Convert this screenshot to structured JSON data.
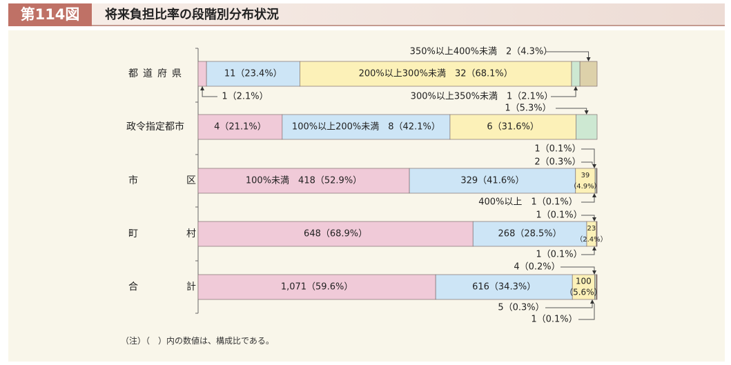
{
  "figure_number": "第114図",
  "title": "将来負担比率の段階別分布状況",
  "note": "（注）（　）内の数値は、構成比である。",
  "colors": {
    "under100": "#f0cad8",
    "100to200": "#cde5f6",
    "200to300": "#fcf1b8",
    "300to350": "#cde8d2",
    "350to400": "#ddd1aa",
    "over400": "#efe6cf"
  },
  "chart_data": {
    "type": "bar",
    "orientation": "horizontal-stacked",
    "categories": [
      "都道府県",
      "政令指定都市",
      "市区",
      "町村",
      "合計"
    ],
    "series": [
      {
        "name": "100%未満",
        "values": [
          1,
          4,
          418,
          648,
          1071
        ],
        "labels": [
          "1（2.1%）",
          "4（21.1%）",
          "100%未満　418（52.9%）",
          "648（68.9%）",
          "1,071（59.6%）"
        ]
      },
      {
        "name": "100%以上200%未満",
        "values": [
          11,
          8,
          329,
          268,
          616
        ],
        "labels": [
          "11（23.4%）",
          "100%以上200%未満　8（42.1%）",
          "329（41.6%）",
          "268（28.5%）",
          "616（34.3%）"
        ]
      },
      {
        "name": "200%以上300%未満",
        "values": [
          32,
          6,
          39,
          23,
          100
        ],
        "labels": [
          "200%以上300%未満　32（68.1%）",
          "6（31.6%）",
          "39（4.9%）",
          "23（2.4%）",
          "100（5.6%）"
        ]
      },
      {
        "name": "300%以上350%未満",
        "values": [
          1,
          1,
          2,
          1,
          5
        ],
        "labels": [
          "300%以上350%未満　1（2.1%）",
          "1（5.3%）",
          "2（0.3%）",
          "1（0.1%）",
          "5（0.3%）"
        ]
      },
      {
        "name": "350%以上400%未満",
        "values": [
          2,
          0,
          1,
          1,
          4
        ],
        "labels": [
          "350%以上400%未満　2（4.3%）",
          "",
          "1（0.1%）",
          "1（0.1%）",
          "4（0.2%）"
        ]
      },
      {
        "name": "400%以上",
        "values": [
          0,
          0,
          1,
          0,
          1
        ],
        "labels": [
          "",
          "",
          "400%以上　1（0.1%）",
          "",
          "1（0.1%）"
        ]
      }
    ],
    "percentages": [
      [
        2.1,
        23.4,
        68.1,
        2.1,
        4.3,
        0
      ],
      [
        21.1,
        42.1,
        31.6,
        5.3,
        0,
        0
      ],
      [
        52.9,
        41.6,
        4.9,
        0.3,
        0.1,
        0.1
      ],
      [
        68.9,
        28.5,
        2.4,
        0.1,
        0.1,
        0
      ],
      [
        59.6,
        34.3,
        5.6,
        0.3,
        0.2,
        0.1
      ]
    ]
  }
}
